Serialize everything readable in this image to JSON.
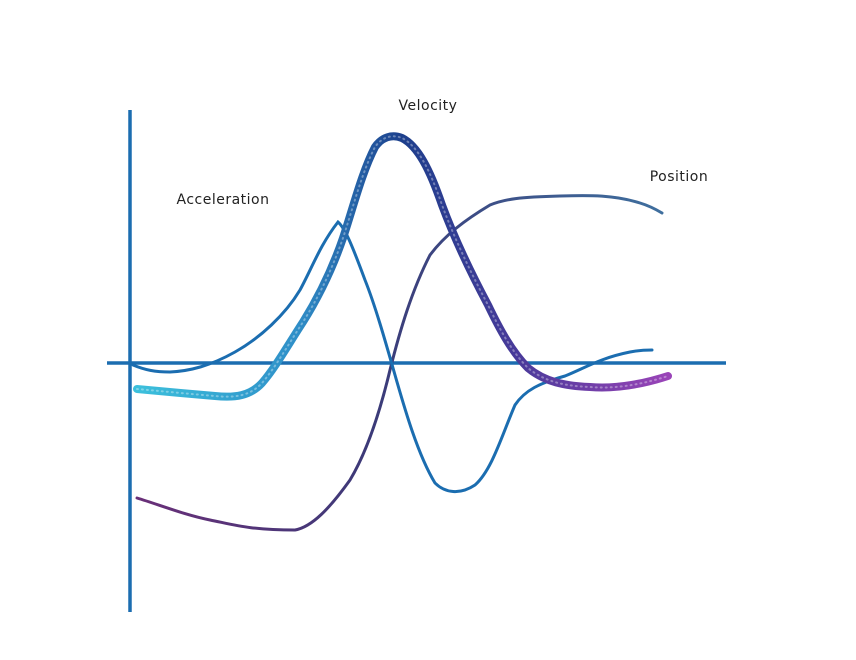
{
  "labels": {
    "velocity": "Velocity",
    "acceleration": "Acceleration",
    "position": "Position"
  }
}
